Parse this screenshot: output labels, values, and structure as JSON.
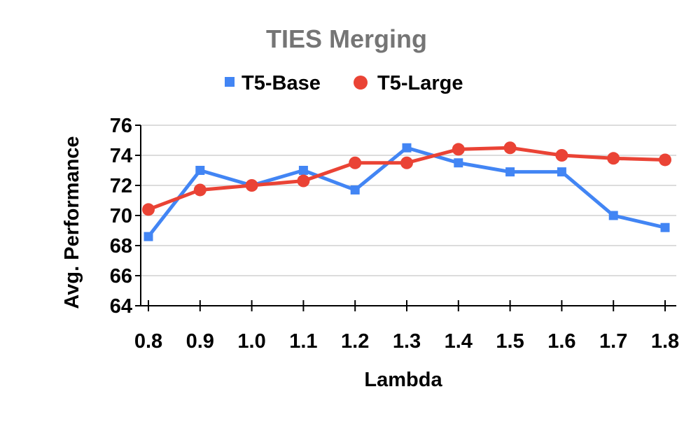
{
  "chart_data": {
    "type": "line",
    "title": "TIES Merging",
    "xlabel": "Lambda",
    "ylabel": "Avg. Performance",
    "categories": [
      "0.8",
      "0.9",
      "1.0",
      "1.1",
      "1.2",
      "1.3",
      "1.4",
      "1.5",
      "1.6",
      "1.7",
      "1.8"
    ],
    "y_ticks": [
      "64",
      "66",
      "68",
      "70",
      "72",
      "74",
      "76"
    ],
    "ylim": [
      64,
      76
    ],
    "grid": true,
    "legend_position": "top",
    "series": [
      {
        "name": "T5-Base",
        "color": "#4285f4",
        "marker": "square",
        "values": [
          68.6,
          73.0,
          72.0,
          73.0,
          71.7,
          74.5,
          73.5,
          72.9,
          72.9,
          70.0,
          69.2
        ]
      },
      {
        "name": "T5-Large",
        "color": "#ea4335",
        "marker": "circle",
        "values": [
          70.4,
          71.7,
          72.0,
          72.3,
          73.5,
          73.5,
          74.4,
          74.5,
          74.0,
          73.8,
          73.7
        ]
      }
    ]
  }
}
